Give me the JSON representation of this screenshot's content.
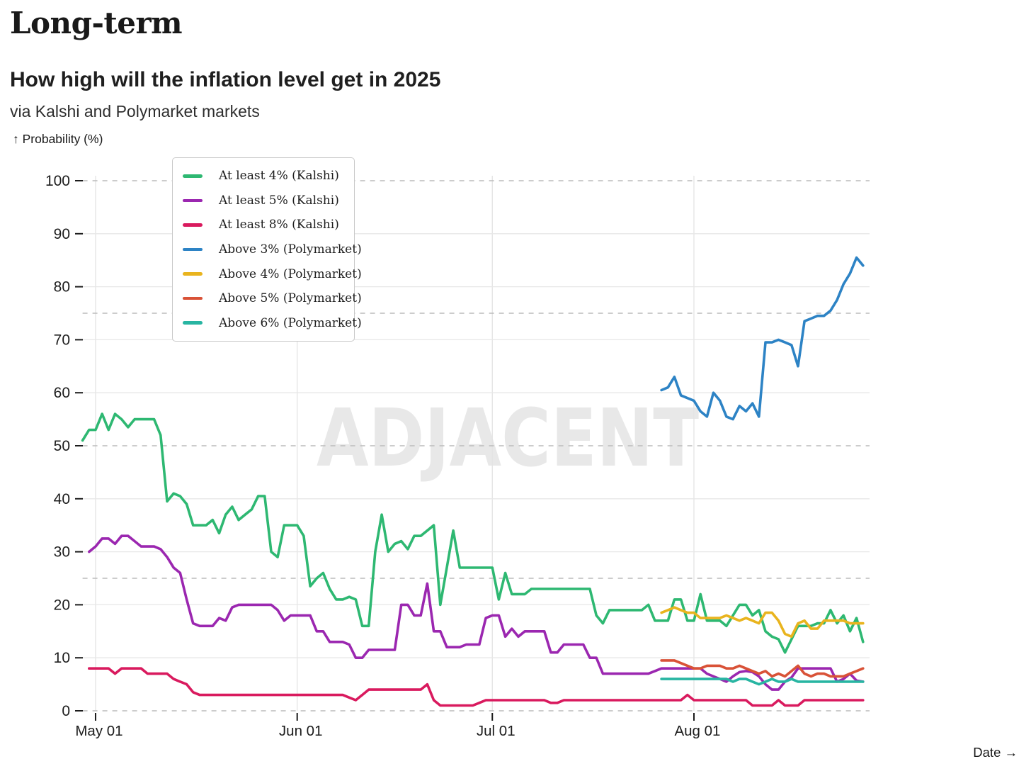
{
  "header": {
    "eyebrow": "Long-term",
    "title": "How high will the inflation level get in 2025",
    "subtitle": "via Kalshi and Polymarket markets"
  },
  "watermark": "ADJACENT",
  "axes": {
    "y_label": "↑ Probability (%)",
    "x_label": "Date →",
    "y_ticks": [
      0,
      10,
      20,
      30,
      40,
      50,
      60,
      70,
      80,
      90,
      100
    ],
    "dashed_levels": [
      0,
      25,
      50,
      75,
      100
    ],
    "x_ticks": [
      {
        "label": "May 01",
        "day": 2
      },
      {
        "label": "Jun 01",
        "day": 33
      },
      {
        "label": "Jul 01",
        "day": 63
      },
      {
        "label": "Aug 01",
        "day": 94
      }
    ]
  },
  "legend": [
    {
      "label": "At least 4% (Kalshi)",
      "color": "#2eb872"
    },
    {
      "label": "At least 5% (Kalshi)",
      "color": "#9b27b0"
    },
    {
      "label": "At least 8% (Kalshi)",
      "color": "#d91a5e"
    },
    {
      "label": "Above 3% (Polymarket)",
      "color": "#2d83c5"
    },
    {
      "label": "Above 4% (Polymarket)",
      "color": "#e9b41e"
    },
    {
      "label": "Above 5% (Polymarket)",
      "color": "#d95237"
    },
    {
      "label": "Above 6% (Polymarket)",
      "color": "#28b5a2"
    }
  ],
  "chart_data": {
    "type": "line",
    "title": "How high will the inflation level get in 2025",
    "xlabel": "Date",
    "ylabel": "Probability (%)",
    "ylim": [
      0,
      100
    ],
    "grid": "horizontal solid at 10-90, dashed at 0/25/50/75/100, vertical at month starts",
    "legend_position": "top-left box",
    "x_unit": "day index, 0 = Apr 29 2025, 120 = Aug 27 2025",
    "days_total": 121,
    "series": [
      {
        "name": "At least 4% (Kalshi)",
        "color": "#2eb872",
        "start_day": 0,
        "values": [
          51,
          53,
          53,
          56,
          53,
          56,
          55,
          53.5,
          55,
          55,
          55,
          55,
          52,
          39.5,
          41,
          40.5,
          39,
          35,
          35,
          35,
          36,
          33.5,
          37,
          38.5,
          36,
          37,
          38,
          40.5,
          40.5,
          30,
          29,
          35,
          35,
          35,
          33,
          23.5,
          25,
          26,
          23,
          21,
          21,
          21.5,
          21,
          16,
          16,
          30,
          37,
          30,
          31.5,
          32,
          30.5,
          33,
          33,
          34,
          35,
          20,
          27,
          34,
          27,
          27,
          27,
          27,
          27,
          27,
          21,
          26,
          22,
          22,
          22,
          23,
          23,
          23,
          23,
          23,
          23,
          23,
          23,
          23,
          23,
          18,
          16.5,
          19,
          19,
          19,
          19,
          19,
          19,
          20,
          17,
          17,
          17,
          21,
          21,
          17,
          17,
          22,
          17,
          17,
          17,
          16,
          18,
          20,
          20,
          18,
          19,
          15,
          14,
          13.5,
          11,
          13.5,
          16,
          16,
          16,
          16.5,
          16.5,
          19,
          16.5,
          18,
          15,
          17.5,
          13
        ]
      },
      {
        "name": "At least 5% (Kalshi)",
        "color": "#9b27b0",
        "start_day": 1,
        "values": [
          30,
          31,
          32.5,
          32.5,
          31.5,
          33,
          33,
          32,
          31,
          31,
          31,
          30.5,
          29,
          27,
          26,
          21,
          16.5,
          16,
          16,
          16,
          17.5,
          17,
          19.5,
          20,
          20,
          20,
          20,
          20,
          20,
          19,
          17,
          18,
          18,
          18,
          18,
          15,
          15,
          13,
          13,
          13,
          12.5,
          10,
          10,
          11.5,
          11.5,
          11.5,
          11.5,
          11.5,
          20,
          20,
          18,
          18,
          24,
          15,
          15,
          12,
          12,
          12,
          12.5,
          12.5,
          12.5,
          17.5,
          18,
          18,
          14,
          15.5,
          14,
          15,
          15,
          15,
          15,
          11,
          11,
          12.5,
          12.5,
          12.5,
          12.5,
          10,
          10,
          7,
          7,
          7,
          7,
          7,
          7,
          7,
          7,
          7.5,
          8,
          8,
          8,
          8,
          8,
          8,
          8,
          7,
          6.5,
          6,
          5.5,
          6.5,
          7.3,
          7.5,
          7.3,
          6.5,
          5,
          4,
          4,
          5.5,
          6.3,
          8,
          8,
          8,
          8,
          8,
          8,
          5.5,
          6,
          7,
          5.7,
          5.5
        ]
      },
      {
        "name": "At least 8% (Kalshi)",
        "color": "#d91a5e",
        "start_day": 1,
        "values": [
          8,
          8,
          8,
          8,
          7,
          8,
          8,
          8,
          8,
          7,
          7,
          7,
          7,
          6,
          5.5,
          5,
          3.5,
          3,
          3,
          3,
          3,
          3,
          3,
          3,
          3,
          3,
          3,
          3,
          3,
          3,
          3,
          3,
          3,
          3,
          3,
          3,
          3,
          3,
          3,
          3,
          2.5,
          2,
          3,
          4,
          4,
          4,
          4,
          4,
          4,
          4,
          4,
          4,
          5,
          2,
          1,
          1,
          1,
          1,
          1,
          1,
          1.5,
          2,
          2,
          2,
          2,
          2,
          2,
          2,
          2,
          2,
          2,
          1.5,
          1.5,
          2,
          2,
          2,
          2,
          2,
          2,
          2,
          2,
          2,
          2,
          2,
          2,
          2,
          2,
          2,
          2,
          2,
          2,
          2,
          3,
          2,
          2,
          2,
          2,
          2,
          2,
          2,
          2,
          2,
          1,
          1,
          1,
          1,
          2,
          1,
          1,
          1,
          2,
          2,
          2,
          2,
          2,
          2,
          2,
          2,
          2,
          2
        ]
      },
      {
        "name": "Above 3% (Polymarket)",
        "color": "#2d83c5",
        "start_day": 89,
        "values": [
          60.5,
          61,
          63,
          59.5,
          59,
          58.5,
          56.5,
          55.5,
          60,
          58.5,
          55.5,
          55,
          57.5,
          56.5,
          58,
          55.5,
          69.5,
          69.5,
          70,
          69.5,
          69,
          65,
          73.5,
          74,
          74.5,
          74.5,
          75.5,
          77.5,
          80.5,
          82.5,
          85.5,
          84
        ]
      },
      {
        "name": "Above 4% (Polymarket)",
        "color": "#e9b41e",
        "start_day": 89,
        "values": [
          18.5,
          19,
          19.5,
          19,
          18.5,
          18.5,
          17.5,
          17.5,
          17.5,
          17.5,
          18,
          17.5,
          17,
          17.5,
          17,
          16.5,
          18.5,
          18.5,
          17,
          14.5,
          14,
          16.5,
          17,
          15.5,
          15.5,
          17,
          17,
          17,
          17,
          16.5,
          16.5,
          16.5
        ]
      },
      {
        "name": "Above 5% (Polymarket)",
        "color": "#d95237",
        "start_day": 89,
        "values": [
          9.5,
          9.5,
          9.5,
          9,
          8.5,
          8,
          8,
          8.5,
          8.5,
          8.5,
          8,
          8,
          8.5,
          8,
          7.5,
          7,
          7.5,
          6.5,
          7,
          6.5,
          7.5,
          8.5,
          7,
          6.5,
          7,
          7,
          6.5,
          6.5,
          6.5,
          7,
          7.5,
          8
        ]
      },
      {
        "name": "Above 6% (Polymarket)",
        "color": "#28b5a2",
        "start_day": 89,
        "values": [
          6,
          6,
          6,
          6,
          6,
          6,
          6,
          6,
          6,
          6,
          6,
          5.5,
          6,
          6,
          5.5,
          5,
          5.5,
          6,
          5.5,
          5.5,
          6,
          5.5,
          5.5,
          5.5,
          5.5,
          5.5,
          5.5,
          5.5,
          5.5,
          5.5,
          5.5,
          5.5
        ]
      }
    ]
  }
}
